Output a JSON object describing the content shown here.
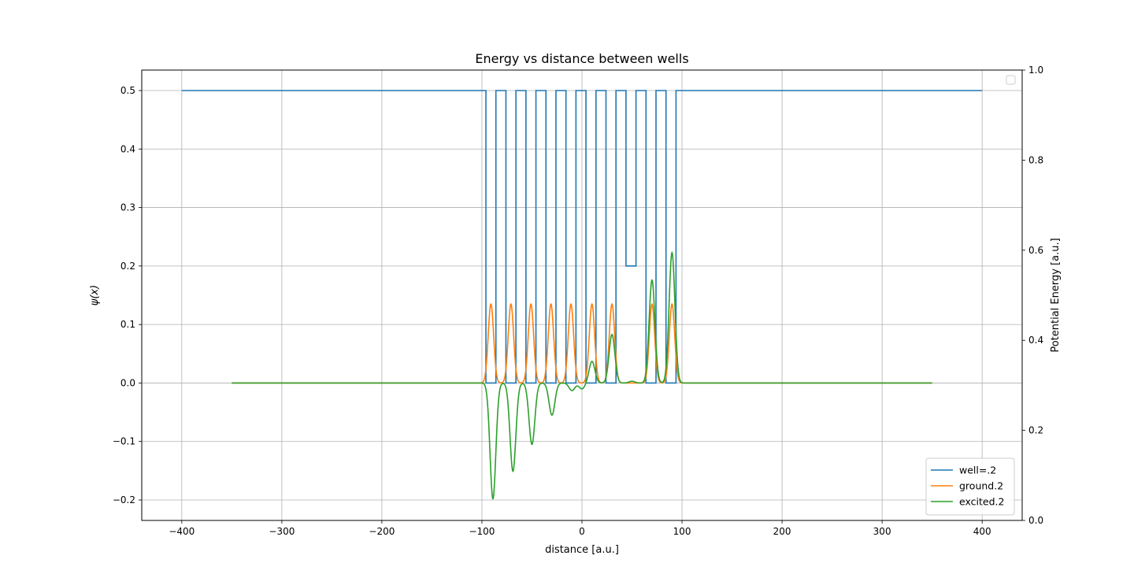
{
  "chart_data": {
    "type": "line",
    "title": "Energy vs distance between wells",
    "xlabel": "distance [a.u.]",
    "ylabel": "ψ(x)",
    "y2label": "Potential Energy [a.u.]",
    "xlim": [
      -440,
      440
    ],
    "ylim": [
      -0.235,
      0.535
    ],
    "y2lim": [
      0.0,
      1.0
    ],
    "xticks": [
      -400,
      -300,
      -200,
      -100,
      0,
      100,
      200,
      300,
      400
    ],
    "yticks": [
      -0.2,
      -0.1,
      0.0,
      0.1,
      0.2,
      0.3,
      0.4,
      0.5
    ],
    "y2ticks": [
      0.0,
      0.2,
      0.4,
      0.6,
      0.8,
      1.0
    ],
    "xtick_labels": [
      "−400",
      "−300",
      "−200",
      "−100",
      "0",
      "100",
      "200",
      "300",
      "400"
    ],
    "ytick_labels": [
      "−0.2",
      "−0.1",
      "0.0",
      "0.1",
      "0.2",
      "0.3",
      "0.4",
      "0.5"
    ],
    "y2tick_labels": [
      "0.0",
      "0.2",
      "0.4",
      "0.6",
      "0.8",
      "1.0"
    ],
    "grid": true,
    "legend": {
      "placement": "lower-right",
      "entries": [
        "well=.2",
        "ground.2",
        "excited.2"
      ]
    },
    "colors": {
      "well": "#1f77b4",
      "ground": "#ff7f0e",
      "excited": "#2ca02c",
      "y2label": "#0000ff"
    },
    "series": [
      {
        "name": "well=.2",
        "kind": "potential",
        "x_range": [
          -400,
          400
        ],
        "barrier_level": 0.5,
        "wells": [
          {
            "x0": -96,
            "x1": -86,
            "bottom": 0.0
          },
          {
            "x0": -76,
            "x1": -66,
            "bottom": 0.0
          },
          {
            "x0": -56,
            "x1": -46,
            "bottom": 0.0
          },
          {
            "x0": -36,
            "x1": -26,
            "bottom": 0.0
          },
          {
            "x0": -16,
            "x1": -6,
            "bottom": 0.0
          },
          {
            "x0": 4,
            "x1": 14,
            "bottom": 0.0
          },
          {
            "x0": 24,
            "x1": 34,
            "bottom": 0.0
          },
          {
            "x0": 44,
            "x1": 54,
            "bottom": 0.2
          },
          {
            "x0": 64,
            "x1": 74,
            "bottom": 0.0
          },
          {
            "x0": 84,
            "x1": 94,
            "bottom": 0.0
          }
        ]
      },
      {
        "name": "ground.2",
        "kind": "peaks",
        "x_range": [
          -350,
          350
        ],
        "sigma": 2.7,
        "peaks": [
          {
            "x": -91,
            "amp": 0.135
          },
          {
            "x": -71,
            "amp": 0.135
          },
          {
            "x": -51,
            "amp": 0.135
          },
          {
            "x": -31,
            "amp": 0.135
          },
          {
            "x": -11,
            "amp": 0.135
          },
          {
            "x": 10,
            "amp": 0.135
          },
          {
            "x": 30,
            "amp": 0.135
          },
          {
            "x": 70,
            "amp": 0.135
          },
          {
            "x": 90,
            "amp": 0.135
          }
        ]
      },
      {
        "name": "excited.2",
        "kind": "peaks",
        "x_range": [
          -350,
          350
        ],
        "sigma": 2.9,
        "peaks": [
          {
            "x": -89,
            "amp": -0.198
          },
          {
            "x": -69,
            "amp": -0.151
          },
          {
            "x": -50,
            "amp": -0.105
          },
          {
            "x": -30,
            "amp": -0.055
          },
          {
            "x": -10,
            "amp": -0.013
          },
          {
            "x": 0,
            "amp": -0.01
          },
          {
            "x": 10,
            "amp": 0.037
          },
          {
            "x": 30,
            "amp": 0.083
          },
          {
            "x": 50,
            "amp": 0.003
          },
          {
            "x": 70,
            "amp": 0.176
          },
          {
            "x": 90,
            "amp": 0.223
          }
        ]
      }
    ]
  }
}
